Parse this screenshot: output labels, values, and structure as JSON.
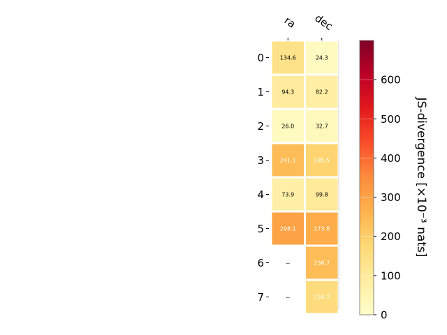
{
  "chart_data": {
    "type": "heatmap",
    "columns": [
      "ra",
      "dec"
    ],
    "rows": [
      "0",
      "1",
      "2",
      "3",
      "4",
      "5",
      "6",
      "7"
    ],
    "values": [
      [
        134.6,
        24.3
      ],
      [
        94.3,
        82.2
      ],
      [
        26.0,
        32.7
      ],
      [
        241.1,
        185.5
      ],
      [
        73.9,
        99.8
      ],
      [
        298.1,
        273.8
      ],
      [
        null,
        238.7
      ],
      [
        null,
        159.7
      ]
    ],
    "labels": [
      [
        "134.6",
        "24.3"
      ],
      [
        "94.3",
        "82.2"
      ],
      [
        "26.0",
        "32.7"
      ],
      [
        "241.1",
        "185.5"
      ],
      [
        "73.9",
        "99.8"
      ],
      [
        "298.1",
        "273.8"
      ],
      [
        "--",
        "238.7"
      ],
      [
        "--",
        "159.7"
      ]
    ],
    "colormap": "YlOrRd",
    "vmin": 0,
    "vmax": 700,
    "colorbar": {
      "label": "JS-divergence [×10⁻³ nats]",
      "ticks": [
        0,
        100,
        200,
        300,
        400,
        500,
        600
      ]
    }
  }
}
